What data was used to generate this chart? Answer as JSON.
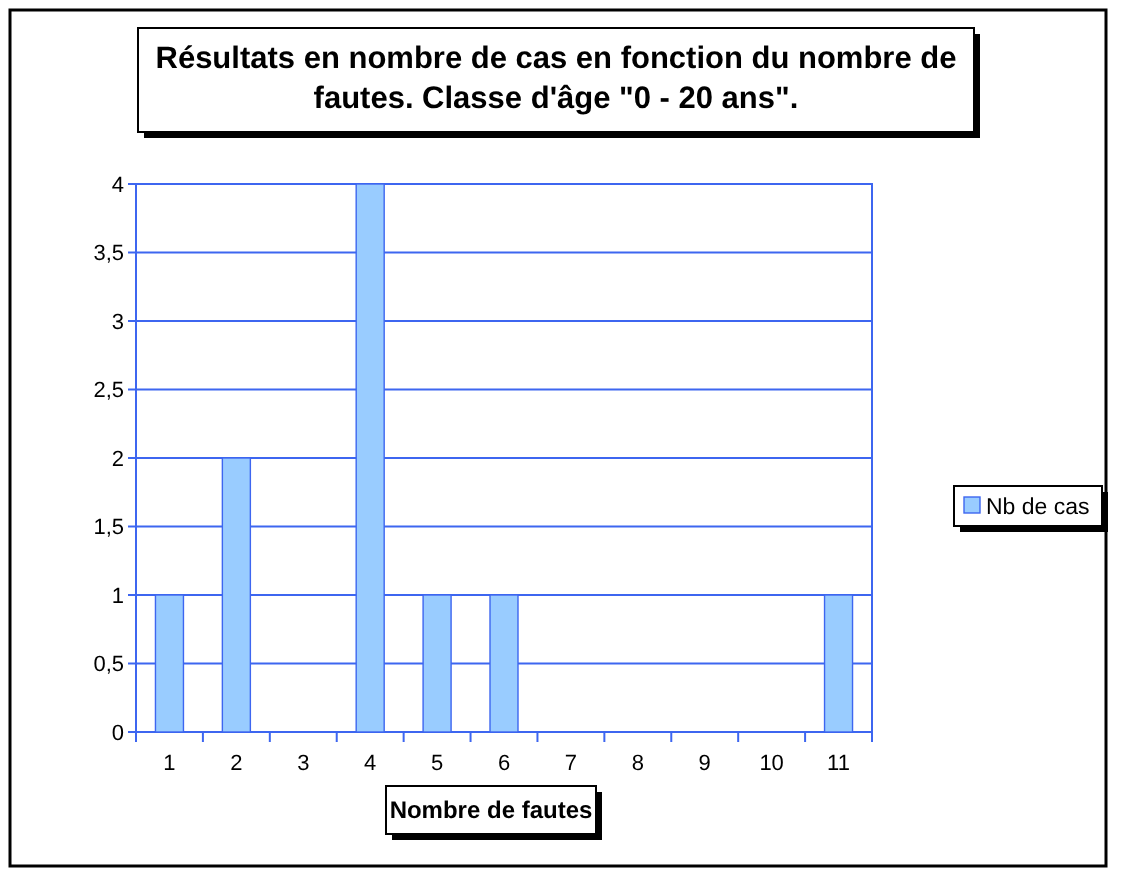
{
  "chart_data": {
    "type": "bar",
    "title": "Résultats en nombre de cas en fonction du nombre de fautes. Classe d'âge \"0 - 20 ans\".",
    "xlabel": "Nombre de fautes",
    "categories": [
      "1",
      "2",
      "3",
      "4",
      "5",
      "6",
      "7",
      "8",
      "9",
      "10",
      "11"
    ],
    "series": [
      {
        "name": "Nb de cas",
        "color": "#99ccff",
        "values": [
          1,
          2,
          0,
          4,
          1,
          1,
          0,
          0,
          0,
          0,
          1
        ]
      }
    ],
    "ylim": [
      0,
      4
    ],
    "yticks": [
      0,
      {
        "value": 0.5,
        "label": "0,5"
      },
      1,
      {
        "value": 1.5,
        "label": "1,5"
      },
      2,
      {
        "value": 2.5,
        "label": "2,5"
      },
      3,
      {
        "value": 3.5,
        "label": "3,5"
      },
      4
    ],
    "grid": "y",
    "legend": "right"
  }
}
